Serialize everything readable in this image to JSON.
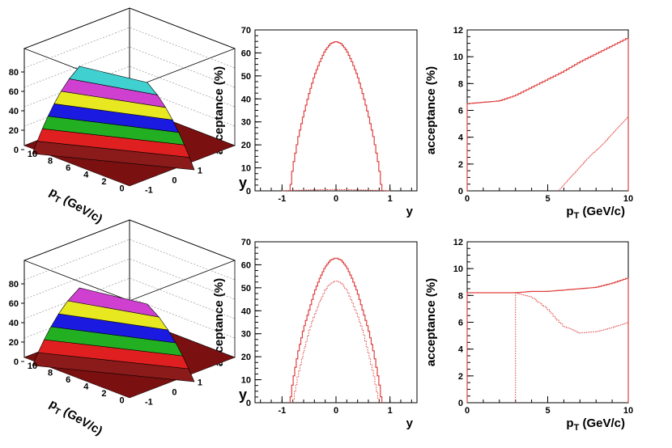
{
  "chart_data": [
    {
      "type": "surface3d",
      "ylabel": "acceptance (%)",
      "xlabel": "p_T (GeV/c)",
      "zlabel": "y",
      "z_ticks": [
        "0",
        "20",
        "40",
        "60",
        "80"
      ],
      "pt_ticks": [
        "10",
        "8",
        "6",
        "4",
        "2",
        "0"
      ],
      "y_ticks": [
        "-1",
        "0",
        "1"
      ],
      "band_colors": [
        "#8b1a1a",
        "#e02020",
        "#22b022",
        "#1a1ae0",
        "#e8e820",
        "#d040d0",
        "#40d0d0"
      ],
      "peak": 90
    },
    {
      "type": "line",
      "xlabel": "y",
      "ylabel": "acceptance (%)",
      "xlim": [
        -1.5,
        1.5
      ],
      "ylim": [
        0,
        70
      ],
      "x_ticks": [
        "-1",
        "0",
        "1"
      ],
      "y_ticks": [
        "0",
        "10",
        "20",
        "30",
        "40",
        "50",
        "60",
        "70"
      ],
      "series": [
        {
          "style": "solid",
          "x": [
            -0.85,
            -0.8,
            -0.7,
            -0.6,
            -0.5,
            -0.4,
            -0.3,
            -0.2,
            -0.1,
            0,
            0.1,
            0.2,
            0.3,
            0.4,
            0.5,
            0.6,
            0.7,
            0.8,
            0.85
          ],
          "values": [
            0,
            10,
            23,
            33,
            42,
            50,
            56,
            61,
            64,
            65,
            64,
            61,
            56,
            50,
            42,
            33,
            23,
            10,
            0
          ]
        },
        {
          "style": "dotted",
          "x": [
            -1,
            -0.5,
            0,
            0.5,
            1
          ],
          "values": [
            0,
            0.4,
            0.6,
            0.4,
            0
          ]
        }
      ]
    },
    {
      "type": "line",
      "xlabel": "p_T (GeV/c)",
      "ylabel": "acceptance (%)",
      "xlim": [
        0,
        10
      ],
      "ylim": [
        0,
        12
      ],
      "x_ticks": [
        "0",
        "5",
        "10"
      ],
      "y_ticks": [
        "0",
        "2",
        "4",
        "6",
        "8",
        "10",
        "12"
      ],
      "series": [
        {
          "style": "solid",
          "x": [
            0,
            1,
            2,
            3,
            4,
            5,
            6,
            7,
            8,
            9,
            10
          ],
          "values": [
            6.5,
            6.6,
            6.7,
            7.1,
            7.7,
            8.3,
            8.9,
            9.6,
            10.2,
            10.8,
            11.4
          ]
        },
        {
          "style": "dotted",
          "x": [
            5.7,
            6,
            7,
            8,
            9,
            10
          ],
          "values": [
            0,
            0.4,
            1.8,
            3.0,
            4.2,
            5.5
          ]
        }
      ]
    },
    {
      "type": "surface3d",
      "ylabel": "acceptance (%)",
      "xlabel": "p_T (GeV/c)",
      "zlabel": "y",
      "z_ticks": [
        "0",
        "20",
        "40",
        "60",
        "80"
      ],
      "pt_ticks": [
        "10",
        "8",
        "6",
        "4",
        "2",
        "0"
      ],
      "y_ticks": [
        "-1",
        "0",
        "1"
      ],
      "band_colors": [
        "#8b1a1a",
        "#e02020",
        "#22b022",
        "#1a1ae0",
        "#e8e820",
        "#d040d0"
      ],
      "peak": 80
    },
    {
      "type": "line",
      "xlabel": "y",
      "ylabel": "acceptance (%)",
      "xlim": [
        -1.5,
        1.5
      ],
      "ylim": [
        0,
        70
      ],
      "x_ticks": [
        "-1",
        "0",
        "1"
      ],
      "y_ticks": [
        "0",
        "10",
        "20",
        "30",
        "40",
        "50",
        "60",
        "70"
      ],
      "series": [
        {
          "style": "solid",
          "x": [
            -0.85,
            -0.8,
            -0.7,
            -0.6,
            -0.5,
            -0.4,
            -0.3,
            -0.2,
            -0.1,
            0,
            0.1,
            0.2,
            0.3,
            0.4,
            0.5,
            0.6,
            0.7,
            0.8,
            0.85
          ],
          "values": [
            0,
            9,
            22,
            32,
            40,
            48,
            54,
            59,
            62,
            63,
            62,
            59,
            54,
            48,
            40,
            32,
            22,
            9,
            0
          ]
        },
        {
          "style": "dotted",
          "x": [
            -0.8,
            -0.7,
            -0.6,
            -0.5,
            -0.4,
            -0.3,
            -0.2,
            -0.1,
            0,
            0.1,
            0.2,
            0.3,
            0.4,
            0.5,
            0.6,
            0.7,
            0.8
          ],
          "values": [
            0,
            12,
            22,
            31,
            38,
            44,
            49,
            52,
            53,
            52,
            49,
            44,
            38,
            31,
            22,
            12,
            0
          ]
        }
      ]
    },
    {
      "type": "line",
      "xlabel": "p_T (GeV/c)",
      "ylabel": "acceptance (%)",
      "xlim": [
        0,
        10
      ],
      "ylim": [
        0,
        12
      ],
      "x_ticks": [
        "0",
        "5",
        "10"
      ],
      "y_ticks": [
        "0",
        "2",
        "4",
        "6",
        "8",
        "10",
        "12"
      ],
      "series": [
        {
          "style": "solid",
          "x": [
            0,
            1,
            2,
            3,
            4,
            5,
            6,
            7,
            8,
            9,
            10
          ],
          "values": [
            8.2,
            8.2,
            8.2,
            8.2,
            8.3,
            8.3,
            8.4,
            8.5,
            8.6,
            8.9,
            9.3
          ]
        },
        {
          "style": "dotted",
          "x": [
            3,
            4,
            5,
            5.5,
            6,
            7,
            8,
            9,
            10
          ],
          "values": [
            8.2,
            7.9,
            7.0,
            6.3,
            5.7,
            5.2,
            5.3,
            5.6,
            6.0
          ]
        }
      ]
    }
  ]
}
